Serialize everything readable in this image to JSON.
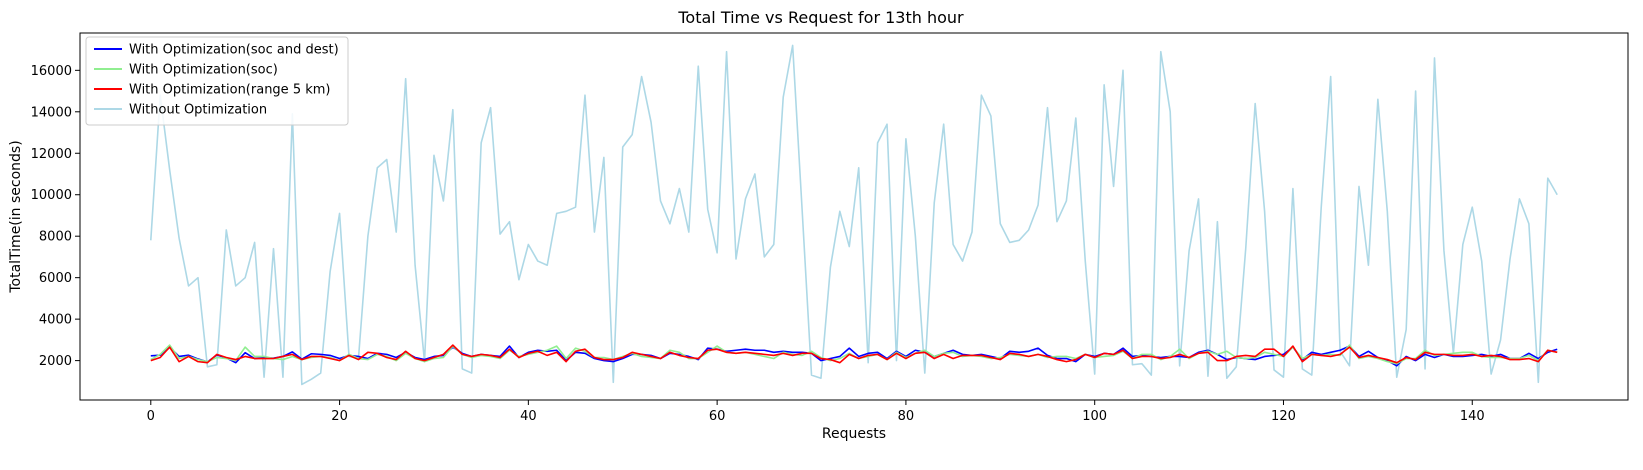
{
  "chart_data": {
    "type": "line",
    "title": "Total Time vs Request for 13th hour",
    "xlabel": "Requests",
    "ylabel": "TotalTime(in seconds)",
    "xlim": [
      -7.5,
      156.5
    ],
    "ylim": [
      100,
      17800
    ],
    "xticks": [
      0,
      20,
      40,
      60,
      80,
      100,
      120,
      140
    ],
    "yticks": [
      2000,
      4000,
      6000,
      8000,
      10000,
      12000,
      14000,
      16000
    ],
    "grid": false,
    "legend_position": "upper-left",
    "series": [
      {
        "name": "With Optimization(soc and dest)",
        "color": "#0000ff",
        "values": [
          2230,
          2260,
          2640,
          2200,
          2260,
          2080,
          1940,
          2270,
          2130,
          1900,
          2380,
          2100,
          2140,
          2120,
          2200,
          2420,
          2070,
          2330,
          2300,
          2250,
          2100,
          2250,
          2200,
          2100,
          2350,
          2300,
          2150,
          2400,
          2150,
          2050,
          2200,
          2250,
          2650,
          2350,
          2200,
          2300,
          2250,
          2200,
          2700,
          2150,
          2400,
          2500,
          2450,
          2500,
          2000,
          2400,
          2350,
          2100,
          2000,
          1950,
          2100,
          2300,
          2300,
          2250,
          2100,
          2350,
          2300,
          2200,
          2050,
          2600,
          2550,
          2450,
          2500,
          2550,
          2500,
          2500,
          2400,
          2450,
          2400,
          2400,
          2350,
          2000,
          2100,
          2200,
          2600,
          2200,
          2350,
          2400,
          2100,
          2450,
          2200,
          2500,
          2400,
          2200,
          2350,
          2500,
          2300,
          2250,
          2300,
          2200,
          2100,
          2450,
          2400,
          2450,
          2600,
          2250,
          2100,
          2100,
          1950,
          2300,
          2200,
          2350,
          2300,
          2600,
          2200,
          2250,
          2200,
          2150,
          2200,
          2200,
          2150,
          2400,
          2500,
          2300,
          2050,
          2150,
          2100,
          2050,
          2200,
          2250,
          2300,
          2650,
          2050,
          2400,
          2300,
          2400,
          2500,
          2700,
          2200,
          2450,
          2150,
          2000,
          1750,
          2200,
          2000,
          2300,
          2150,
          2300,
          2200,
          2200,
          2250,
          2300,
          2200,
          2300,
          2100,
          2100,
          2350,
          2100,
          2400,
          2550
        ]
      },
      {
        "name": "With Optimization(soc)",
        "color": "#90ee90",
        "values": [
          2050,
          2300,
          2750,
          2100,
          2200,
          2050,
          1950,
          2150,
          2100,
          2000,
          2650,
          2200,
          2200,
          2100,
          2050,
          2200,
          2050,
          2150,
          2200,
          2150,
          2000,
          2300,
          2100,
          2050,
          2300,
          2200,
          2000,
          2350,
          2100,
          1950,
          2100,
          2150,
          2700,
          2300,
          2150,
          2250,
          2200,
          2100,
          2500,
          2200,
          2300,
          2400,
          2500,
          2700,
          2100,
          2600,
          2450,
          2150,
          2150,
          2050,
          2200,
          2350,
          2200,
          2150,
          2100,
          2500,
          2400,
          2100,
          2100,
          2400,
          2700,
          2400,
          2350,
          2400,
          2300,
          2200,
          2100,
          2400,
          2300,
          2250,
          2450,
          2150,
          2000,
          2100,
          2350,
          2100,
          2200,
          2300,
          2050,
          2400,
          2150,
          2350,
          2500,
          2200,
          2350,
          2400,
          2200,
          2250,
          2200,
          2100,
          2150,
          2300,
          2250,
          2200,
          2300,
          2150,
          2200,
          2200,
          2100,
          2300,
          2150,
          2200,
          2250,
          2450,
          2100,
          2300,
          2300,
          2050,
          2200,
          2550,
          2100,
          2350,
          2450,
          2300,
          2450,
          2150,
          2100,
          2150,
          2400,
          2300,
          2200,
          2650,
          2100,
          2300,
          2250,
          2300,
          2250,
          2750,
          2100,
          2200,
          2100,
          1950,
          1850,
          2100,
          2100,
          2500,
          2250,
          2300,
          2350,
          2400,
          2400,
          2200,
          2150,
          2150,
          2100,
          2100,
          2250,
          2000,
          2500,
          2400
        ]
      },
      {
        "name": "With Optimization(range 5 km)",
        "color": "#ff0000",
        "values": [
          2000,
          2150,
          2650,
          1950,
          2200,
          1950,
          1900,
          2300,
          2150,
          2050,
          2200,
          2100,
          2100,
          2100,
          2200,
          2300,
          2050,
          2200,
          2200,
          2100,
          2000,
          2250,
          2050,
          2400,
          2350,
          2150,
          2050,
          2450,
          2100,
          2000,
          2150,
          2300,
          2750,
          2300,
          2200,
          2300,
          2250,
          2150,
          2550,
          2150,
          2350,
          2450,
          2250,
          2400,
          1950,
          2450,
          2550,
          2150,
          2050,
          2050,
          2150,
          2400,
          2300,
          2200,
          2100,
          2400,
          2250,
          2150,
          2100,
          2500,
          2550,
          2400,
          2350,
          2400,
          2350,
          2300,
          2250,
          2350,
          2250,
          2350,
          2350,
          2100,
          2050,
          1900,
          2300,
          2100,
          2250,
          2300,
          2050,
          2350,
          2100,
          2350,
          2400,
          2100,
          2300,
          2100,
          2250,
          2250,
          2250,
          2150,
          2050,
          2350,
          2300,
          2200,
          2300,
          2200,
          2050,
          1950,
          2050,
          2300,
          2150,
          2350,
          2300,
          2500,
          2100,
          2200,
          2200,
          2100,
          2150,
          2300,
          2150,
          2350,
          2400,
          2000,
          2000,
          2200,
          2250,
          2200,
          2550,
          2550,
          2200,
          2700,
          1950,
          2300,
          2250,
          2200,
          2300,
          2650,
          2150,
          2250,
          2150,
          2050,
          1900,
          2150,
          2050,
          2400,
          2300,
          2300,
          2250,
          2250,
          2300,
          2200,
          2250,
          2200,
          2050,
          2050,
          2100,
          1950,
          2500,
          2400
        ]
      },
      {
        "name": "Without Optimization",
        "color": "#add8e6",
        "values": [
          7800,
          14800,
          11200,
          7900,
          5600,
          6000,
          1700,
          1800,
          8300,
          5600,
          6000,
          7700,
          1200,
          7400,
          1200,
          13900,
          850,
          1100,
          1400,
          6300,
          9100,
          2200,
          2100,
          8000,
          11300,
          11700,
          8200,
          15600,
          6600,
          1950,
          11900,
          9700,
          14100,
          1600,
          1400,
          12500,
          14200,
          8100,
          8700,
          5900,
          7600,
          6800,
          6600,
          9100,
          9200,
          9400,
          14800,
          8200,
          11800,
          950,
          12300,
          12900,
          15700,
          13500,
          9700,
          8600,
          10300,
          8200,
          16200,
          9300,
          7200,
          16900,
          6900,
          9800,
          11000,
          7000,
          7600,
          14700,
          17200,
          9300,
          1300,
          1150,
          6500,
          9200,
          7500,
          11300,
          1900,
          12500,
          13400,
          2000,
          12700,
          8000,
          1400,
          9600,
          13400,
          7600,
          6800,
          8200,
          14800,
          13800,
          8600,
          7700,
          7800,
          8300,
          9500,
          14200,
          8700,
          9700,
          13700,
          6800,
          1350,
          15300,
          10400,
          16000,
          1800,
          1850,
          1300,
          16900,
          14000,
          1750,
          7300,
          9800,
          1250,
          8700,
          1150,
          1700,
          7400,
          14400,
          9200,
          1550,
          1200,
          10300,
          1600,
          1300,
          9400,
          15700,
          2450,
          1750,
          10400,
          6600,
          14600,
          9200,
          1200,
          3500,
          15000,
          1600,
          16600,
          7300,
          2350,
          7600,
          9400,
          6800,
          1350,
          3000,
          6900,
          9800,
          8600,
          950,
          10800,
          10000
        ]
      }
    ]
  }
}
